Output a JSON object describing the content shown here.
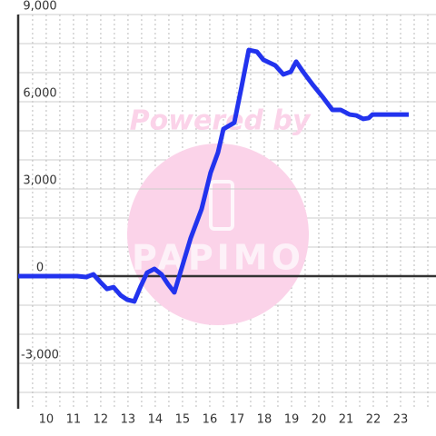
{
  "chart_data": {
    "type": "line",
    "annotations": [
      "Powered by",
      "PAPIMO"
    ],
    "x": [
      8.97,
      11.13,
      11.47,
      11.73,
      11.97,
      12.23,
      12.47,
      12.73,
      12.97,
      13.23,
      13.47,
      13.7,
      13.97,
      14.23,
      14.47,
      14.7,
      14.97,
      15.3,
      15.7,
      16.03,
      16.3,
      16.5,
      16.9,
      17.17,
      17.43,
      17.73,
      17.97,
      18.4,
      18.7,
      18.97,
      19.17,
      19.4,
      19.8,
      20.17,
      20.5,
      20.8,
      21.13,
      21.37,
      21.63,
      21.83,
      21.97,
      23.3
    ],
    "series": [
      {
        "color": "#2233ee",
        "values": [
          0,
          0,
          -30,
          60,
          -190,
          -440,
          -380,
          -660,
          -810,
          -870,
          -340,
          120,
          250,
          60,
          -280,
          -560,
          280,
          1310,
          2310,
          3560,
          4250,
          5060,
          5280,
          6530,
          7780,
          7720,
          7440,
          7250,
          6940,
          7030,
          7380,
          7060,
          6560,
          6130,
          5720,
          5720,
          5560,
          5530,
          5410,
          5440,
          5560,
          5560
        ]
      }
    ],
    "xlim": [
      8.97,
      24.3
    ],
    "ylim": [
      -4562,
      9000
    ],
    "xticks": [
      10,
      11,
      12,
      13,
      14,
      15,
      16,
      17,
      18,
      19,
      20,
      21,
      22,
      23
    ],
    "yticks": [
      {
        "value": -3000,
        "label": "-3,000"
      },
      0,
      {
        "value": 3000,
        "label": "3,000"
      },
      {
        "value": 6000,
        "label": "6,000"
      },
      {
        "value": 9000,
        "label": "9,000"
      }
    ],
    "y_minor_ticks": [
      -4000,
      -2000,
      -1000,
      1000,
      2000,
      4000,
      5000,
      7000,
      8000
    ],
    "x_minor_ticks": [
      9.5,
      10.5,
      11.5,
      12.5,
      13.5,
      14.5,
      15.5,
      16.5,
      17.5,
      18.5,
      19.5,
      20.5,
      21.5,
      22.5,
      23.5,
      24
    ],
    "grid": true
  }
}
